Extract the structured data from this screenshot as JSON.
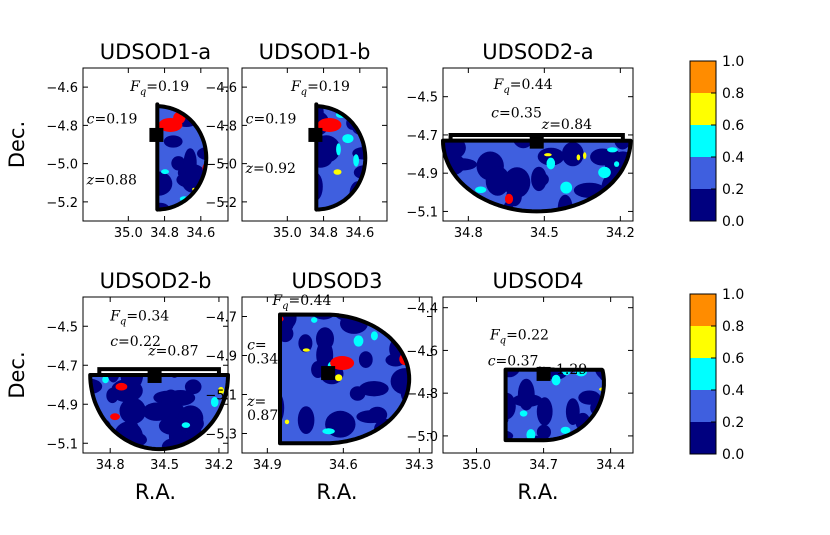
{
  "chart_data": [
    {
      "type": "heatmap",
      "title": "UDSOD1-a",
      "ylabel": "Dec.",
      "xlabel": "",
      "xlim": [
        35.25,
        34.45
      ],
      "ylim": [
        -5.3,
        -4.5
      ],
      "xticks": [
        "35.0",
        "34.8",
        "34.6"
      ],
      "xtick_values": [
        35.0,
        34.8,
        34.6
      ],
      "yticks": [
        "−4.6",
        "−4.8",
        "−5.0",
        "−5.2"
      ],
      "ytick_values": [
        -4.6,
        -4.8,
        -5.0,
        -5.2
      ],
      "annotations": [
        {
          "sym": "F",
          "sub": "q",
          "text": "=0.19",
          "x": 34.99,
          "y": -4.62
        },
        {
          "sym": "c",
          "text": "=0.19",
          "x": 35.23,
          "y": -4.79
        },
        {
          "sym": "z",
          "text": "=0.88",
          "x": 35.23,
          "y": -5.11
        }
      ],
      "region": {
        "cx": 34.84,
        "cy": -4.97,
        "r": 0.27,
        "dec_min": -5.24,
        "dec_max": -4.69,
        "ra_straight": 34.84,
        "orientation": "right"
      },
      "marker": {
        "x": 34.845,
        "y": -4.85
      }
    },
    {
      "type": "heatmap",
      "title": "UDSOD1-b",
      "ylabel": "",
      "xlabel": "",
      "xlim": [
        35.25,
        34.45
      ],
      "ylim": [
        -5.3,
        -4.5
      ],
      "xticks": [
        "35.0",
        "34.8",
        "34.6"
      ],
      "xtick_values": [
        35.0,
        34.8,
        34.6
      ],
      "yticks": [
        "−4.6",
        "−4.8",
        "−5.0",
        "−5.2"
      ],
      "ytick_values": [
        -4.6,
        -4.8,
        -5.0,
        -5.2
      ],
      "annotations": [
        {
          "sym": "F",
          "sub": "q",
          "text": "=0.19",
          "x": 34.98,
          "y": -4.62
        },
        {
          "sym": "c",
          "text": "=0.19",
          "x": 35.23,
          "y": -4.79
        },
        {
          "sym": "z",
          "text": "=0.92",
          "x": 35.23,
          "y": -5.05
        }
      ],
      "region": {
        "cx": 34.84,
        "cy": -4.97,
        "r": 0.27,
        "dec_min": -5.24,
        "dec_max": -4.69,
        "ra_straight": 34.84,
        "orientation": "right"
      },
      "marker": {
        "x": 34.845,
        "y": -4.85
      }
    },
    {
      "type": "heatmap",
      "title": "UDSOD2-a",
      "ylabel": "",
      "xlabel": "",
      "xlim": [
        34.9,
        34.15
      ],
      "ylim": [
        -5.15,
        -4.35
      ],
      "xticks": [
        "34.8",
        "34.5",
        "34.2"
      ],
      "xtick_values": [
        34.8,
        34.5,
        34.2
      ],
      "yticks": [
        "−4.5",
        "−4.7",
        "−4.9",
        "−5.1"
      ],
      "ytick_values": [
        -4.5,
        -4.7,
        -4.9,
        -5.1
      ],
      "annotations": [
        {
          "sym": "F",
          "sub": "q",
          "text": "=0.44",
          "x": 34.7,
          "y": -4.46
        },
        {
          "sym": "c",
          "text": "=0.35",
          "x": 34.71,
          "y": -4.61
        },
        {
          "sym": "z",
          "text": "=0.84",
          "x": 34.51,
          "y": -4.67
        }
      ],
      "region": {
        "cx": 34.53,
        "cy": -4.73,
        "r": 0.37,
        "ra_min": 34.16,
        "ra_max": 34.9,
        "dec_straight": -4.73,
        "orientation": "down",
        "box": [
          34.87,
          34.19,
          -4.73,
          -4.7
        ]
      },
      "marker": {
        "x": 34.53,
        "y": -4.735
      }
    },
    {
      "type": "heatmap",
      "title": "UDSOD2-b",
      "ylabel": "Dec.",
      "xlabel": "R.A.",
      "xlim": [
        34.95,
        34.15
      ],
      "ylim": [
        -5.15,
        -4.35
      ],
      "xticks": [
        "34.8",
        "34.5",
        "34.2"
      ],
      "xtick_values": [
        34.8,
        34.5,
        34.2
      ],
      "yticks": [
        "−4.5",
        "−4.7",
        "−4.9",
        "−5.1"
      ],
      "ytick_values": [
        -4.5,
        -4.7,
        -4.9,
        -5.1
      ],
      "annotations": [
        {
          "sym": "F",
          "sub": "q",
          "text": "=0.34",
          "x": 34.8,
          "y": -4.47
        },
        {
          "sym": "c",
          "text": "=0.22",
          "x": 34.8,
          "y": -4.6
        },
        {
          "sym": "z",
          "text": "=0.87",
          "x": 34.59,
          "y": -4.65
        }
      ],
      "region": {
        "cx": 34.53,
        "cy": -4.75,
        "r": 0.38,
        "ra_min": 34.16,
        "ra_max": 34.9,
        "dec_straight": -4.75,
        "orientation": "down",
        "box": [
          34.86,
          34.2,
          -4.75,
          -4.72
        ]
      },
      "marker": {
        "x": 34.555,
        "y": -4.755
      }
    },
    {
      "type": "heatmap",
      "title": "UDSOD3",
      "ylabel": "",
      "xlabel": "R.A.",
      "xlim": [
        35.0,
        34.25
      ],
      "ylim": [
        -5.4,
        -4.6
      ],
      "xticks": [
        "34.9",
        "34.6",
        "34.3"
      ],
      "xtick_values": [
        34.9,
        34.6,
        34.3
      ],
      "yticks": [
        "−4.7",
        "−4.9",
        "−5.1",
        "−5.3"
      ],
      "ytick_values": [
        -4.7,
        -4.9,
        -5.1,
        -5.3
      ],
      "annotations": [
        {
          "sym": "F",
          "sub": "q",
          "text": "=0.44",
          "x": 34.88,
          "y": -4.64
        },
        {
          "sym": "c",
          "text": "=",
          "x": 34.98,
          "y": -4.87
        },
        {
          "text": "0.34",
          "x": 34.98,
          "y": -4.94
        },
        {
          "sym": "z",
          "text": "=",
          "x": 34.98,
          "y": -5.16
        },
        {
          "text": "0.87",
          "x": 34.98,
          "y": -5.23
        }
      ],
      "region": {
        "cx": 34.67,
        "cy": -5.02,
        "r": 0.33,
        "dec_min": -5.35,
        "dec_max": -4.69,
        "ra_straight": 34.85,
        "orientation": "right"
      },
      "marker": {
        "x": 34.66,
        "y": -4.99
      }
    },
    {
      "type": "heatmap",
      "title": "UDSOD4",
      "ylabel": "",
      "xlabel": "R.A.",
      "xlim": [
        35.15,
        34.3
      ],
      "ylim": [
        -5.08,
        -4.35
      ],
      "xticks": [
        "35.0",
        "34.7",
        "34.4"
      ],
      "xtick_values": [
        35.0,
        34.7,
        34.4
      ],
      "yticks": [
        "−4.4",
        "−4.6",
        "−4.8",
        "−5.0"
      ],
      "ytick_values": [
        -4.4,
        -4.6,
        -4.8,
        -5.0
      ],
      "annotations": [
        {
          "sym": "F",
          "sub": "q",
          "text": "=0.22",
          "x": 34.94,
          "y": -4.55
        },
        {
          "sym": "c",
          "text": "=0.37",
          "x": 34.95,
          "y": -4.67
        },
        {
          "sym": "z",
          "text": "=1.29",
          "x": 34.73,
          "y": -4.71
        }
      ],
      "region": {
        "cx": 34.7,
        "cy": -4.75,
        "r": 0.27,
        "dec_min": -5.02,
        "dec_max": -4.69,
        "ra_straight": 34.87,
        "orientation": "right-corner"
      },
      "marker": {
        "x": 34.7,
        "y": -4.71
      }
    }
  ],
  "colorbar": {
    "ticks": [
      "1.0",
      "0.8",
      "0.6",
      "0.4",
      "0.2",
      "0.0"
    ],
    "levels": [
      0.0,
      0.2,
      0.4,
      0.6,
      0.8,
      1.0
    ],
    "colors": [
      "#00007f",
      "#3f5fdf",
      "#00ffff",
      "#ffff00",
      "#ff8c00",
      "#ff0000"
    ]
  },
  "colors": {
    "bg_main": "#3f5fdf",
    "dark": "#00007f",
    "cyan": "#00ffff",
    "yellow": "#ffff00",
    "orange": "#ff8c00",
    "red": "#ff0000",
    "outline": "#000000"
  }
}
